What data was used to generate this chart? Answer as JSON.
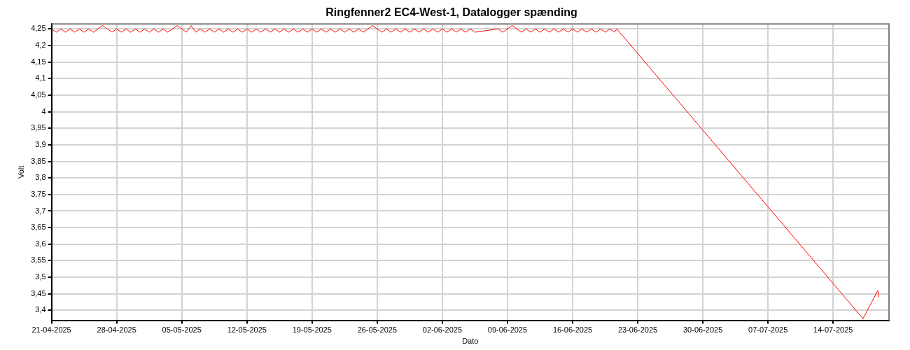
{
  "chart_data": {
    "type": "line",
    "title": "Ringfenner2 EC4-West-1, Datalogger spænding",
    "xlabel": "Dato",
    "ylabel": "Volt",
    "series": [
      {
        "color": "#ff0000",
        "x": [
          "2025-04-21T00:00",
          "2025-04-21T12:00",
          "2025-04-22T00:00",
          "2025-04-22T12:00",
          "2025-04-23T00:00",
          "2025-04-23T12:00",
          "2025-04-24T00:00",
          "2025-04-24T12:00",
          "2025-04-25T00:00",
          "2025-04-25T12:00",
          "2025-04-26T00:00",
          "2025-04-26T12:00",
          "2025-04-27T00:00",
          "2025-04-27T12:00",
          "2025-04-28T00:00",
          "2025-04-28T12:00",
          "2025-04-29T00:00",
          "2025-04-29T12:00",
          "2025-04-30T00:00",
          "2025-04-30T12:00",
          "2025-05-01T00:00",
          "2025-05-01T12:00",
          "2025-05-02T00:00",
          "2025-05-02T12:00",
          "2025-05-03T00:00",
          "2025-05-03T12:00",
          "2025-05-04T00:00",
          "2025-05-04T12:00",
          "2025-05-05T00:00",
          "2025-05-05T12:00",
          "2025-05-06T00:00",
          "2025-05-06T12:00",
          "2025-05-07T00:00",
          "2025-05-07T12:00",
          "2025-05-08T00:00",
          "2025-05-08T12:00",
          "2025-05-09T00:00",
          "2025-05-09T12:00",
          "2025-05-10T00:00",
          "2025-05-10T12:00",
          "2025-05-11T00:00",
          "2025-05-11T12:00",
          "2025-05-12T00:00",
          "2025-05-12T12:00",
          "2025-05-13T00:00",
          "2025-05-13T12:00",
          "2025-05-14T00:00",
          "2025-05-14T12:00",
          "2025-05-15T00:00",
          "2025-05-15T12:00",
          "2025-05-16T00:00",
          "2025-05-16T12:00",
          "2025-05-17T00:00",
          "2025-05-17T12:00",
          "2025-05-18T00:00",
          "2025-05-18T12:00",
          "2025-05-19T00:00",
          "2025-05-19T12:00",
          "2025-05-20T00:00",
          "2025-05-20T12:00",
          "2025-05-21T00:00",
          "2025-05-21T12:00",
          "2025-05-22T00:00",
          "2025-05-22T12:00",
          "2025-05-23T00:00",
          "2025-05-23T12:00",
          "2025-05-24T00:00",
          "2025-05-24T12:00",
          "2025-05-25T00:00",
          "2025-05-25T12:00",
          "2025-05-26T00:00",
          "2025-05-26T12:00",
          "2025-05-27T00:00",
          "2025-05-27T12:00",
          "2025-05-28T00:00",
          "2025-05-28T12:00",
          "2025-05-29T00:00",
          "2025-05-29T12:00",
          "2025-05-30T00:00",
          "2025-05-30T12:00",
          "2025-05-31T00:00",
          "2025-05-31T12:00",
          "2025-06-01T00:00",
          "2025-06-01T12:00",
          "2025-06-02T00:00",
          "2025-06-02T12:00",
          "2025-06-03T00:00",
          "2025-06-03T12:00",
          "2025-06-04T00:00",
          "2025-06-04T12:00",
          "2025-06-05T00:00",
          "2025-06-05T12:00",
          "2025-06-08T00:00",
          "2025-06-08T12:00",
          "2025-06-09T00:00",
          "2025-06-09T12:00",
          "2025-06-10T00:00",
          "2025-06-10T12:00",
          "2025-06-11T00:00",
          "2025-06-11T12:00",
          "2025-06-12T00:00",
          "2025-06-12T12:00",
          "2025-06-13T00:00",
          "2025-06-13T12:00",
          "2025-06-14T00:00",
          "2025-06-14T12:00",
          "2025-06-15T00:00",
          "2025-06-15T12:00",
          "2025-06-16T00:00",
          "2025-06-16T12:00",
          "2025-06-17T00:00",
          "2025-06-17T12:00",
          "2025-06-18T00:00",
          "2025-06-18T12:00",
          "2025-06-19T00:00",
          "2025-06-19T12:00",
          "2025-06-20T00:00",
          "2025-06-20T12:00",
          "2025-06-20T18:00",
          "2025-07-17T05:00",
          "2025-07-18T19:00",
          "2025-07-18T22:00"
        ],
        "values": [
          4.25,
          4.24,
          4.25,
          4.24,
          4.25,
          4.24,
          4.25,
          4.24,
          4.25,
          4.24,
          4.25,
          4.26,
          4.25,
          4.24,
          4.25,
          4.24,
          4.25,
          4.24,
          4.25,
          4.24,
          4.25,
          4.24,
          4.25,
          4.24,
          4.25,
          4.24,
          4.25,
          4.26,
          4.25,
          4.24,
          4.26,
          4.24,
          4.25,
          4.24,
          4.25,
          4.24,
          4.25,
          4.24,
          4.25,
          4.24,
          4.25,
          4.24,
          4.25,
          4.24,
          4.25,
          4.24,
          4.25,
          4.24,
          4.25,
          4.24,
          4.25,
          4.24,
          4.25,
          4.24,
          4.25,
          4.24,
          4.25,
          4.24,
          4.25,
          4.24,
          4.25,
          4.24,
          4.25,
          4.24,
          4.25,
          4.24,
          4.25,
          4.24,
          4.25,
          4.26,
          4.25,
          4.24,
          4.25,
          4.24,
          4.25,
          4.24,
          4.25,
          4.24,
          4.25,
          4.24,
          4.25,
          4.24,
          4.25,
          4.24,
          4.25,
          4.24,
          4.25,
          4.24,
          4.25,
          4.24,
          4.25,
          4.24,
          4.25,
          4.24,
          4.25,
          4.26,
          4.25,
          4.24,
          4.25,
          4.24,
          4.25,
          4.24,
          4.25,
          4.24,
          4.25,
          4.24,
          4.25,
          4.24,
          4.25,
          4.24,
          4.25,
          4.24,
          4.25,
          4.24,
          4.25,
          4.24,
          4.25,
          4.24,
          4.25,
          3.375,
          3.46,
          3.44
        ]
      }
    ],
    "xlim": [
      "2025-04-21",
      "2025-07-20"
    ],
    "xticks": [
      {
        "value": "2025-04-21",
        "label": "21-04-2025"
      },
      {
        "value": "2025-04-28",
        "label": "28-04-2025"
      },
      {
        "value": "2025-05-05",
        "label": "05-05-2025"
      },
      {
        "value": "2025-05-12",
        "label": "12-05-2025"
      },
      {
        "value": "2025-05-19",
        "label": "19-05-2025"
      },
      {
        "value": "2025-05-26",
        "label": "26-05-2025"
      },
      {
        "value": "2025-06-02",
        "label": "02-06-2025"
      },
      {
        "value": "2025-06-09",
        "label": "09-06-2025"
      },
      {
        "value": "2025-06-16",
        "label": "16-06-2025"
      },
      {
        "value": "2025-06-23",
        "label": "23-06-2025"
      },
      {
        "value": "2025-06-30",
        "label": "30-06-2025"
      },
      {
        "value": "2025-07-07",
        "label": "07-07-2025"
      },
      {
        "value": "2025-07-14",
        "label": "14-07-2025"
      }
    ],
    "ylim": [
      3.37,
      4.265
    ],
    "yticks": [
      {
        "value": 3.4,
        "label": "3,4"
      },
      {
        "value": 3.45,
        "label": "3,45"
      },
      {
        "value": 3.5,
        "label": "3,5"
      },
      {
        "value": 3.55,
        "label": "3,55"
      },
      {
        "value": 3.6,
        "label": "3,6"
      },
      {
        "value": 3.65,
        "label": "3,65"
      },
      {
        "value": 3.7,
        "label": "3,7"
      },
      {
        "value": 3.75,
        "label": "3,75"
      },
      {
        "value": 3.8,
        "label": "3,8"
      },
      {
        "value": 3.85,
        "label": "3,85"
      },
      {
        "value": 3.9,
        "label": "3,9"
      },
      {
        "value": 3.95,
        "label": "3,95"
      },
      {
        "value": 4,
        "label": "4"
      },
      {
        "value": 4.05,
        "label": "4,05"
      },
      {
        "value": 4.1,
        "label": "4,1"
      },
      {
        "value": 4.15,
        "label": "4,15"
      },
      {
        "value": 4.2,
        "label": "4,2"
      },
      {
        "value": 4.25,
        "label": "4,25"
      }
    ],
    "grid": true,
    "legend": false,
    "marker": "none",
    "line_style": "solid"
  }
}
